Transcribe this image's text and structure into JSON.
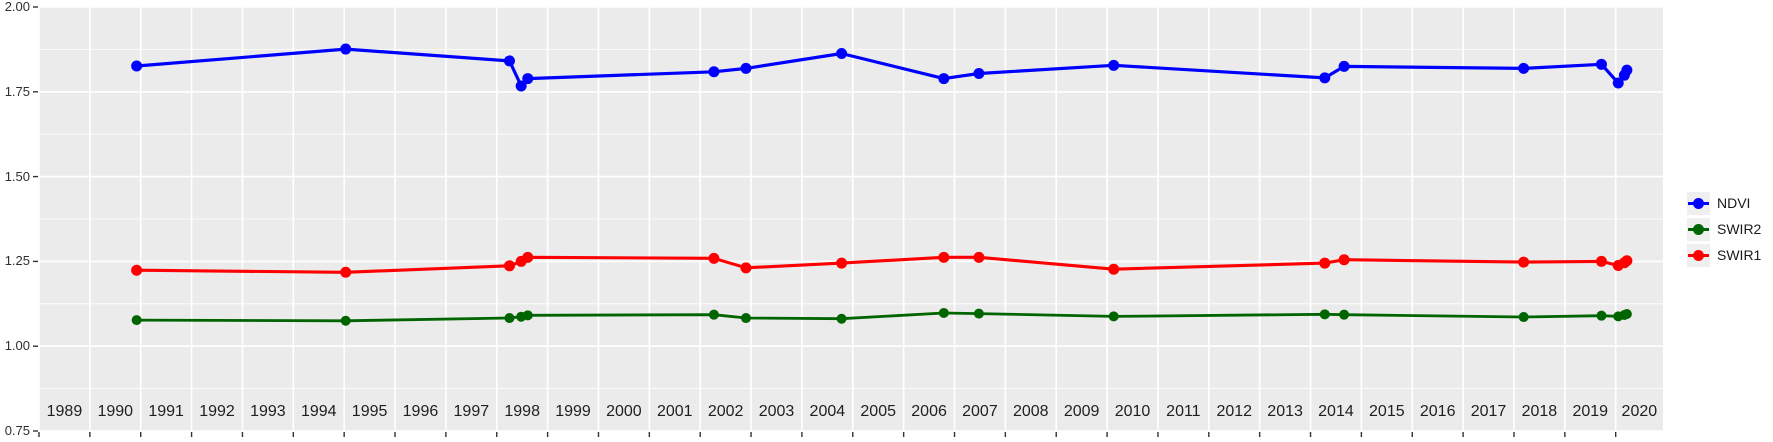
{
  "chart_data": {
    "type": "line",
    "title": "",
    "xlabel": "",
    "ylabel": "",
    "x": [
      1990.92,
      1995.03,
      1998.25,
      1998.48,
      1998.61,
      2002.27,
      2002.9,
      2004.78,
      2006.79,
      2007.48,
      2010.13,
      2014.28,
      2014.66,
      2018.19,
      2019.72,
      2020.05,
      2020.17,
      2020.22
    ],
    "series": [
      {
        "name": "NDVI",
        "color": "#0000FF",
        "values": [
          1.826,
          1.876,
          1.841,
          1.767,
          1.789,
          1.809,
          1.819,
          1.863,
          1.789,
          1.804,
          1.828,
          1.791,
          1.825,
          1.819,
          1.831,
          1.776,
          1.799,
          1.814
        ]
      },
      {
        "name": "SWIR2",
        "color": "#006400",
        "values": [
          1.077,
          1.075,
          1.083,
          1.087,
          1.091,
          1.093,
          1.083,
          1.081,
          1.098,
          1.096,
          1.088,
          1.094,
          1.093,
          1.086,
          1.09,
          1.088,
          1.092,
          1.095
        ]
      },
      {
        "name": "SWIR1",
        "color": "#FF0000",
        "values": [
          1.224,
          1.218,
          1.237,
          1.25,
          1.262,
          1.259,
          1.231,
          1.245,
          1.262,
          1.262,
          1.227,
          1.245,
          1.255,
          1.248,
          1.25,
          1.238,
          1.246,
          1.252
        ]
      }
    ],
    "x_range": [
      1989,
      2020.93
    ],
    "y_range": [
      0.75,
      2.0
    ],
    "x_tick_labels": [
      "1989",
      "1990",
      "1991",
      "1992",
      "1993",
      "1994",
      "1995",
      "1996",
      "1997",
      "1998",
      "1999",
      "2000",
      "2001",
      "2002",
      "2003",
      "2004",
      "2005",
      "2006",
      "2007",
      "2008",
      "2009",
      "2010",
      "2011",
      "2012",
      "2013",
      "2014",
      "2015",
      "2016",
      "2017",
      "2018",
      "2019",
      "2020"
    ],
    "y_tick_labels": [
      "2.00",
      "1.75",
      "1.50",
      "1.25",
      "1.00",
      "0.75"
    ],
    "y_tick_values": [
      2.0,
      1.75,
      1.5,
      1.25,
      1.0,
      0.75
    ],
    "y_minor_values": [
      1.875,
      1.625,
      1.375,
      1.125,
      0.875
    ],
    "grid": true,
    "legend_position": "right",
    "panel_bg": "#EBEBEB",
    "grid_color": "#FFFFFF",
    "tick_color": "#333333",
    "legend_key_bg": "#EFEFEF"
  },
  "legend": {
    "items": [
      {
        "label": "NDVI",
        "color": "#0000FF"
      },
      {
        "label": "SWIR2",
        "color": "#006400"
      },
      {
        "label": "SWIR1",
        "color": "#FF0000"
      }
    ]
  }
}
